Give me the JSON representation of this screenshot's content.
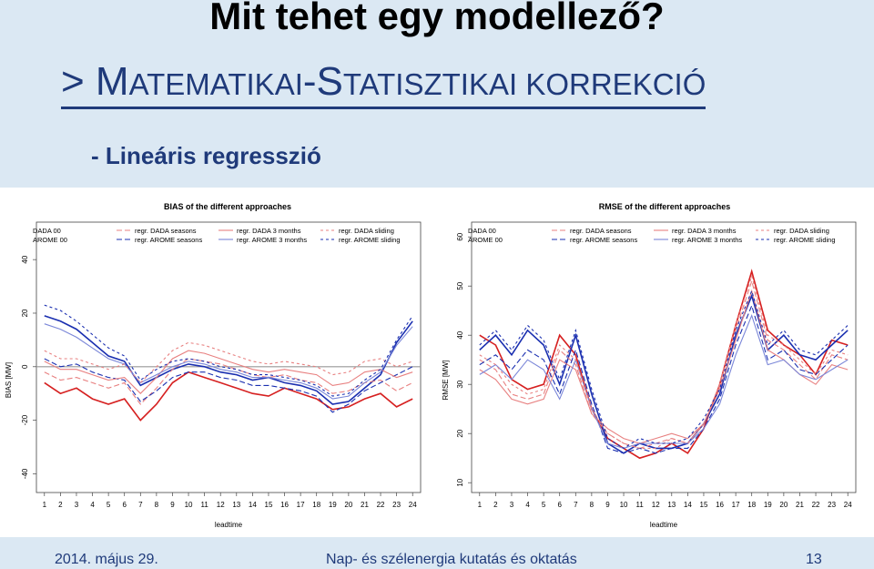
{
  "slide": {
    "title": "Mit tehet egy modellező?",
    "subtitle_prefix": "> M",
    "subtitle_part1": "ATEMATIKAI",
    "subtitle_dash": "-S",
    "subtitle_part2": "TATISZTIKAI KORREKCIÓ",
    "bullet": "- Lineáris regresszió",
    "footer_date": "2014. május 29.",
    "footer_center": "Nap- és szélenergia kutatás és oktatás",
    "footer_page": "13"
  },
  "colors": {
    "red_solid": "#d62020",
    "red_light": "#e88080",
    "blue_solid": "#1a2fb0",
    "blue_light": "#7a86d8",
    "zero_line": "#999999"
  },
  "chart_data": [
    {
      "type": "line",
      "title": "BIAS of the different approaches",
      "xlabel": "leadtime",
      "ylabel": "BIAS [MW]",
      "x": [
        1,
        2,
        3,
        4,
        5,
        6,
        7,
        8,
        9,
        10,
        11,
        12,
        13,
        14,
        15,
        16,
        17,
        18,
        19,
        20,
        21,
        22,
        23,
        24
      ],
      "xticks": [
        "1",
        "2",
        "3",
        "4",
        "5",
        "6",
        "7",
        "8",
        "9",
        "10",
        "11",
        "12",
        "13",
        "14",
        "15",
        "16",
        "17",
        "18",
        "19",
        "20",
        "21",
        "22",
        "23",
        "24"
      ],
      "yticks": [
        "-40",
        "-20",
        "0",
        "20",
        "40"
      ],
      "ylim": [
        -47,
        54
      ],
      "zero_line": true,
      "legend": [
        "DADA 00",
        "AROME 00",
        "regr. DADA seasons",
        "regr. AROME seasons",
        "regr. DADA 3 months",
        "regr. AROME 3 months",
        "regr. DADA sliding",
        "regr. AROME sliding"
      ],
      "series": [
        {
          "name": "DADA 00",
          "color": "red_solid",
          "dash": "none",
          "values": [
            -6,
            -10,
            -8,
            -12,
            -14,
            -12,
            -20,
            -14,
            -6,
            -2,
            -4,
            -6,
            -8,
            -10,
            -11,
            -8,
            -10,
            -12,
            -16,
            -15,
            -12,
            -10,
            -15,
            -12
          ]
        },
        {
          "name": "AROME 00",
          "color": "blue_solid",
          "dash": "none",
          "values": [
            19,
            17,
            14,
            9,
            4,
            2,
            -7,
            -4,
            -1,
            1,
            0,
            -2,
            -3,
            -5,
            -4,
            -6,
            -7,
            -9,
            -14,
            -13,
            -8,
            -3,
            9,
            17
          ]
        },
        {
          "name": "regr. DADA seasons",
          "color": "red_light",
          "dash": "6,3",
          "values": [
            -2,
            -5,
            -4,
            -6,
            -8,
            -6,
            -14,
            -8,
            -1,
            3,
            2,
            1,
            -1,
            -3,
            -4,
            -3,
            -5,
            -6,
            -10,
            -9,
            -6,
            -5,
            -9,
            -6
          ]
        },
        {
          "name": "regr. AROME seasons",
          "color": "blue_solid",
          "dash": "6,3",
          "values": [
            3,
            0,
            1,
            -2,
            -4,
            -5,
            -13,
            -9,
            -4,
            -2,
            -2,
            -4,
            -5,
            -7,
            -7,
            -8,
            -9,
            -11,
            -17,
            -14,
            -9,
            -6,
            -3,
            0
          ]
        },
        {
          "name": "regr. DADA 3 months",
          "color": "red_light",
          "dash": "none",
          "values": [
            2,
            -1,
            -1,
            -3,
            -5,
            -4,
            -10,
            -4,
            3,
            6,
            5,
            3,
            1,
            -1,
            -2,
            -1,
            -2,
            -3,
            -7,
            -6,
            -2,
            -1,
            -4,
            -2
          ]
        },
        {
          "name": "regr. AROME 3 months",
          "color": "blue_light",
          "dash": "none",
          "values": [
            16,
            14,
            11,
            7,
            3,
            1,
            -6,
            -3,
            0,
            2,
            1,
            -1,
            -2,
            -4,
            -4,
            -5,
            -6,
            -8,
            -12,
            -11,
            -6,
            -2,
            8,
            15
          ]
        },
        {
          "name": "regr. DADA sliding",
          "color": "red_light",
          "dash": "3,3",
          "values": [
            6,
            3,
            3,
            1,
            -1,
            1,
            -6,
            0,
            6,
            9,
            8,
            6,
            4,
            2,
            1,
            2,
            1,
            0,
            -3,
            -2,
            2,
            3,
            0,
            2
          ]
        },
        {
          "name": "regr. AROME sliding",
          "color": "blue_solid",
          "dash": "3,3",
          "values": [
            23,
            21,
            17,
            12,
            7,
            4,
            -5,
            -1,
            2,
            3,
            2,
            0,
            -1,
            -3,
            -3,
            -4,
            -5,
            -7,
            -11,
            -10,
            -5,
            -1,
            10,
            19
          ]
        }
      ]
    },
    {
      "type": "line",
      "title": "RMSE of the different approaches",
      "xlabel": "leadtime",
      "ylabel": "RMSE [MW]",
      "x": [
        1,
        2,
        3,
        4,
        5,
        6,
        7,
        8,
        9,
        10,
        11,
        12,
        13,
        14,
        15,
        16,
        17,
        18,
        19,
        20,
        21,
        22,
        23,
        24
      ],
      "xticks": [
        "1",
        "2",
        "3",
        "4",
        "5",
        "6",
        "7",
        "8",
        "9",
        "10",
        "11",
        "12",
        "13",
        "14",
        "15",
        "16",
        "17",
        "18",
        "19",
        "20",
        "21",
        "22",
        "23",
        "24"
      ],
      "yticks": [
        "10",
        "20",
        "30",
        "40",
        "50",
        "60"
      ],
      "ylim": [
        8,
        63
      ],
      "zero_line": false,
      "legend": [
        "DADA 00",
        "AROME 00",
        "regr. DADA seasons",
        "regr. AROME seasons",
        "regr. DADA 3 months",
        "regr. AROME 3 months",
        "regr. DADA sliding",
        "regr. AROME sliding"
      ],
      "series": [
        {
          "name": "DADA 00",
          "color": "red_solid",
          "dash": "none",
          "values": [
            40,
            38,
            31,
            29,
            30,
            40,
            36,
            25,
            19,
            17,
            15,
            16,
            18,
            16,
            21,
            30,
            42,
            53,
            41,
            38,
            36,
            32,
            39,
            38
          ]
        },
        {
          "name": "AROME 00",
          "color": "blue_solid",
          "dash": "none",
          "values": [
            37,
            40,
            36,
            41,
            38,
            30,
            40,
            28,
            18,
            16,
            18,
            17,
            17,
            18,
            22,
            28,
            40,
            48,
            37,
            40,
            36,
            35,
            38,
            41
          ]
        },
        {
          "name": "regr. DADA seasons",
          "color": "red_light",
          "dash": "6,3",
          "values": [
            35,
            33,
            28,
            27,
            28,
            37,
            34,
            24,
            20,
            18,
            17,
            18,
            19,
            18,
            22,
            30,
            41,
            51,
            39,
            37,
            34,
            31,
            36,
            35
          ]
        },
        {
          "name": "regr. AROME seasons",
          "color": "blue_solid",
          "dash": "6,3",
          "values": [
            34,
            36,
            33,
            37,
            35,
            28,
            37,
            26,
            17,
            16,
            17,
            16,
            17,
            17,
            21,
            27,
            38,
            46,
            35,
            37,
            33,
            32,
            35,
            38
          ]
        },
        {
          "name": "regr. DADA 3 months",
          "color": "red_light",
          "dash": "none",
          "values": [
            33,
            31,
            27,
            26,
            27,
            35,
            33,
            24,
            21,
            19,
            18,
            19,
            20,
            19,
            22,
            29,
            39,
            49,
            37,
            35,
            32,
            30,
            34,
            33
          ]
        },
        {
          "name": "regr. AROME 3 months",
          "color": "blue_light",
          "dash": "none",
          "values": [
            32,
            34,
            31,
            35,
            33,
            27,
            35,
            25,
            18,
            17,
            18,
            18,
            18,
            18,
            21,
            26,
            36,
            44,
            34,
            35,
            32,
            31,
            33,
            35
          ]
        },
        {
          "name": "regr. DADA sliding",
          "color": "red_light",
          "dash": "3,3",
          "values": [
            36,
            34,
            30,
            28,
            29,
            38,
            35,
            25,
            20,
            18,
            17,
            17,
            19,
            18,
            22,
            30,
            42,
            52,
            40,
            38,
            35,
            32,
            37,
            36
          ]
        },
        {
          "name": "regr. AROME sliding",
          "color": "blue_solid",
          "dash": "3,3",
          "values": [
            38,
            41,
            37,
            42,
            39,
            31,
            41,
            29,
            19,
            17,
            19,
            18,
            18,
            19,
            23,
            29,
            41,
            49,
            38,
            41,
            37,
            36,
            39,
            42
          ]
        }
      ]
    }
  ]
}
